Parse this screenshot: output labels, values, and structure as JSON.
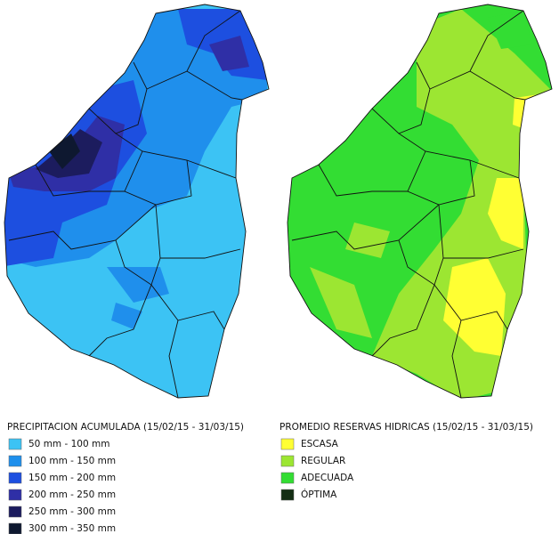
{
  "maps": [
    {
      "legend": {
        "title": "PRECIPITACION ACUMULADA (15/02/15 - 31/03/15)",
        "items": [
          {
            "label": "50 mm - 100 mm",
            "color": "#3cc3f4"
          },
          {
            "label": "100 mm - 150 mm",
            "color": "#1f8fec"
          },
          {
            "label": "150 mm - 200 mm",
            "color": "#1d4fe0"
          },
          {
            "label": "200 mm - 250 mm",
            "color": "#2f2fa6"
          },
          {
            "label": "250 mm - 300 mm",
            "color": "#1c1c5e"
          },
          {
            "label": "300 mm - 350 mm",
            "color": "#0e1830"
          }
        ]
      }
    },
    {
      "legend": {
        "title": "PROMEDIO RESERVAS HIDRICAS (15/02/15 - 31/03/15)",
        "items": [
          {
            "label": "ESCASA",
            "color": "#ffff33"
          },
          {
            "label": "REGULAR",
            "color": "#9ce632"
          },
          {
            "label": "ADECUADA",
            "color": "#33dd33"
          },
          {
            "label": "ÓPTIMA",
            "color": "#142e14"
          }
        ]
      }
    }
  ]
}
